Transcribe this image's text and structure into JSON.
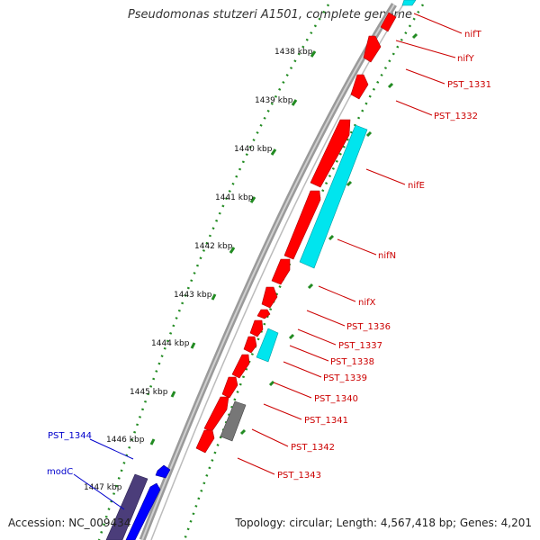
{
  "title": "Pseudomonas stutzeri A1501, complete genome",
  "footer": {
    "accession": "Accession: NC_009434",
    "summary": "Topology: circular; Length: 4,567,418 bp; Genes: 4,201"
  },
  "colors": {
    "forward_gene": "#ff0000",
    "reverse_gene": "#0000ff",
    "rna_or_special": "#00e5ee",
    "pseudo_grey": "#777777",
    "dark_purple": "#4b3d7a",
    "tick_green": "#228b22",
    "backbone": "#888888",
    "label_red": "#cc0000",
    "label_blue": "#0000cc"
  },
  "scale_ticks": [
    "1438 kbp",
    "1439 kbp",
    "1440 kbp",
    "1441 kbp",
    "1442 kbp",
    "1443 kbp",
    "1444 kbp",
    "1445 kbp",
    "1446 kbp",
    "1447 kbp"
  ],
  "gene_labels_right": [
    "nifT",
    "nifY",
    "PST_1331",
    "PST_1332",
    "nifE",
    "nifN",
    "nifX",
    "PST_1336",
    "PST_1337",
    "PST_1338",
    "PST_1339",
    "PST_1340",
    "PST_1341",
    "PST_1342",
    "PST_1343"
  ],
  "gene_labels_left": [
    "PST_1344",
    "modC"
  ]
}
